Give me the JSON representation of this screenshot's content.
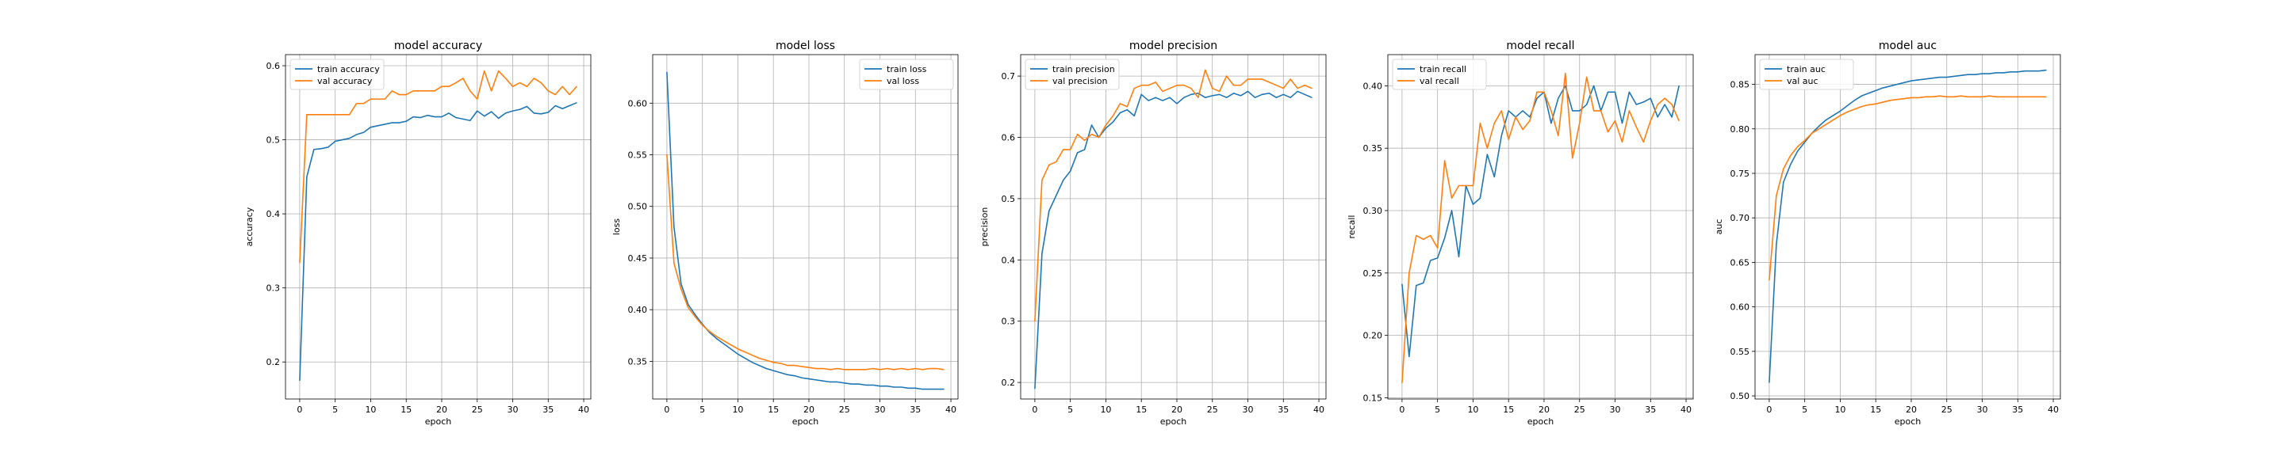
{
  "chart_data": [
    {
      "type": "line",
      "title": "model accuracy",
      "xlabel": "epoch",
      "ylabel": "accuracy",
      "xlim": [
        -2,
        41
      ],
      "ylim": [
        0.15,
        0.615
      ],
      "xticks": [
        0,
        5,
        10,
        15,
        20,
        25,
        30,
        35,
        40
      ],
      "yticks": [
        0.2,
        0.3,
        0.4,
        0.5,
        0.6
      ],
      "ytick_format": "1",
      "grid": true,
      "legend": "upper left",
      "x": [
        0,
        1,
        2,
        3,
        4,
        5,
        6,
        7,
        8,
        9,
        10,
        11,
        12,
        13,
        14,
        15,
        16,
        17,
        18,
        19,
        20,
        21,
        22,
        23,
        24,
        25,
        26,
        27,
        28,
        29,
        30,
        31,
        32,
        33,
        34,
        35,
        36,
        37,
        38,
        39
      ],
      "series": [
        {
          "name": "train accuracy",
          "color": "#1f77b4",
          "values": [
            0.175,
            0.45,
            0.487,
            0.488,
            0.49,
            0.498,
            0.5,
            0.502,
            0.507,
            0.51,
            0.517,
            0.519,
            0.521,
            0.523,
            0.523,
            0.525,
            0.531,
            0.53,
            0.533,
            0.531,
            0.531,
            0.536,
            0.53,
            0.528,
            0.526,
            0.539,
            0.532,
            0.538,
            0.529,
            0.536,
            0.539,
            0.541,
            0.545,
            0.536,
            0.535,
            0.537,
            0.546,
            0.542,
            0.546,
            0.55
          ]
        },
        {
          "name": "val accuracy",
          "color": "#ff7f0e",
          "values": [
            0.334,
            0.534,
            0.534,
            0.534,
            0.534,
            0.534,
            0.534,
            0.534,
            0.549,
            0.549,
            0.555,
            0.555,
            0.555,
            0.566,
            0.561,
            0.561,
            0.566,
            0.566,
            0.566,
            0.566,
            0.572,
            0.572,
            0.577,
            0.583,
            0.566,
            0.555,
            0.593,
            0.566,
            0.593,
            0.583,
            0.572,
            0.577,
            0.572,
            0.583,
            0.577,
            0.566,
            0.561,
            0.572,
            0.561,
            0.572
          ]
        }
      ]
    },
    {
      "type": "line",
      "title": "model loss",
      "xlabel": "epoch",
      "ylabel": "loss",
      "xlim": [
        -2,
        41
      ],
      "ylim": [
        0.3135,
        0.647
      ],
      "xticks": [
        0,
        5,
        10,
        15,
        20,
        25,
        30,
        35,
        40
      ],
      "yticks": [
        0.35,
        0.4,
        0.45,
        0.5,
        0.55,
        0.6
      ],
      "ytick_format": "2",
      "grid": true,
      "legend": "upper right",
      "x": [
        0,
        1,
        2,
        3,
        4,
        5,
        6,
        7,
        8,
        9,
        10,
        11,
        12,
        13,
        14,
        15,
        16,
        17,
        18,
        19,
        20,
        21,
        22,
        23,
        24,
        25,
        26,
        27,
        28,
        29,
        30,
        31,
        32,
        33,
        34,
        35,
        36,
        37,
        38,
        39
      ],
      "series": [
        {
          "name": "train loss",
          "color": "#1f77b4",
          "values": [
            0.63,
            0.48,
            0.425,
            0.405,
            0.395,
            0.386,
            0.378,
            0.372,
            0.367,
            0.362,
            0.357,
            0.353,
            0.349,
            0.346,
            0.343,
            0.341,
            0.339,
            0.337,
            0.336,
            0.334,
            0.333,
            0.332,
            0.331,
            0.33,
            0.33,
            0.329,
            0.328,
            0.328,
            0.327,
            0.327,
            0.326,
            0.326,
            0.325,
            0.325,
            0.324,
            0.324,
            0.323,
            0.323,
            0.323,
            0.323
          ]
        },
        {
          "name": "val loss",
          "color": "#ff7f0e",
          "values": [
            0.55,
            0.445,
            0.42,
            0.402,
            0.393,
            0.385,
            0.379,
            0.374,
            0.37,
            0.366,
            0.362,
            0.359,
            0.356,
            0.353,
            0.351,
            0.349,
            0.348,
            0.346,
            0.346,
            0.345,
            0.344,
            0.343,
            0.343,
            0.342,
            0.343,
            0.342,
            0.342,
            0.342,
            0.342,
            0.343,
            0.342,
            0.343,
            0.342,
            0.343,
            0.342,
            0.343,
            0.342,
            0.343,
            0.343,
            0.342
          ]
        }
      ]
    },
    {
      "type": "line",
      "title": "model precision",
      "xlabel": "epoch",
      "ylabel": "precision",
      "xlim": [
        -2,
        41
      ],
      "ylim": [
        0.173,
        0.735
      ],
      "xticks": [
        0,
        5,
        10,
        15,
        20,
        25,
        30,
        35,
        40
      ],
      "yticks": [
        0.2,
        0.3,
        0.4,
        0.5,
        0.6,
        0.7
      ],
      "ytick_format": "1",
      "grid": true,
      "legend": "upper left",
      "x": [
        0,
        1,
        2,
        3,
        4,
        5,
        6,
        7,
        8,
        9,
        10,
        11,
        12,
        13,
        14,
        15,
        16,
        17,
        18,
        19,
        20,
        21,
        22,
        23,
        24,
        25,
        26,
        27,
        28,
        29,
        30,
        31,
        32,
        33,
        34,
        35,
        36,
        37,
        38,
        39
      ],
      "series": [
        {
          "name": "train precision",
          "color": "#1f77b4",
          "values": [
            0.19,
            0.41,
            0.48,
            0.505,
            0.53,
            0.545,
            0.575,
            0.58,
            0.62,
            0.6,
            0.615,
            0.625,
            0.64,
            0.645,
            0.635,
            0.67,
            0.66,
            0.665,
            0.66,
            0.665,
            0.655,
            0.665,
            0.67,
            0.672,
            0.665,
            0.668,
            0.67,
            0.665,
            0.672,
            0.668,
            0.675,
            0.665,
            0.67,
            0.672,
            0.665,
            0.67,
            0.665,
            0.675,
            0.67,
            0.665
          ]
        },
        {
          "name": "val precision",
          "color": "#ff7f0e",
          "values": [
            0.3,
            0.53,
            0.555,
            0.56,
            0.58,
            0.58,
            0.605,
            0.595,
            0.605,
            0.6,
            0.62,
            0.635,
            0.655,
            0.65,
            0.68,
            0.685,
            0.685,
            0.69,
            0.675,
            0.68,
            0.685,
            0.685,
            0.68,
            0.665,
            0.71,
            0.68,
            0.675,
            0.7,
            0.685,
            0.685,
            0.695,
            0.695,
            0.695,
            0.69,
            0.685,
            0.68,
            0.695,
            0.68,
            0.685,
            0.68
          ]
        }
      ]
    },
    {
      "type": "line",
      "title": "model recall",
      "xlabel": "epoch",
      "ylabel": "recall",
      "xlim": [
        -2,
        41
      ],
      "ylim": [
        0.149,
        0.425
      ],
      "xticks": [
        0,
        5,
        10,
        15,
        20,
        25,
        30,
        35,
        40
      ],
      "yticks": [
        0.15,
        0.2,
        0.25,
        0.3,
        0.35,
        0.4
      ],
      "ytick_format": "2",
      "grid": true,
      "legend": "upper left",
      "x": [
        0,
        1,
        2,
        3,
        4,
        5,
        6,
        7,
        8,
        9,
        10,
        11,
        12,
        13,
        14,
        15,
        16,
        17,
        18,
        19,
        20,
        21,
        22,
        23,
        24,
        25,
        26,
        27,
        28,
        29,
        30,
        31,
        32,
        33,
        34,
        35,
        36,
        37,
        38,
        39
      ],
      "series": [
        {
          "name": "train recall",
          "color": "#1f77b4",
          "values": [
            0.241,
            0.183,
            0.24,
            0.242,
            0.26,
            0.262,
            0.278,
            0.3,
            0.263,
            0.32,
            0.305,
            0.31,
            0.345,
            0.327,
            0.36,
            0.38,
            0.375,
            0.38,
            0.375,
            0.39,
            0.395,
            0.37,
            0.39,
            0.4,
            0.38,
            0.38,
            0.385,
            0.4,
            0.38,
            0.395,
            0.395,
            0.37,
            0.395,
            0.385,
            0.387,
            0.39,
            0.375,
            0.385,
            0.375,
            0.4
          ]
        },
        {
          "name": "val recall",
          "color": "#ff7f0e",
          "values": [
            0.162,
            0.25,
            0.28,
            0.277,
            0.28,
            0.27,
            0.34,
            0.31,
            0.32,
            0.32,
            0.32,
            0.37,
            0.35,
            0.37,
            0.38,
            0.357,
            0.375,
            0.365,
            0.372,
            0.395,
            0.395,
            0.38,
            0.36,
            0.41,
            0.342,
            0.37,
            0.407,
            0.38,
            0.38,
            0.363,
            0.372,
            0.355,
            0.38,
            0.367,
            0.355,
            0.372,
            0.385,
            0.39,
            0.385,
            0.372
          ]
        }
      ]
    },
    {
      "type": "line",
      "title": "model auc",
      "xlabel": "epoch",
      "ylabel": "auc",
      "xlim": [
        -2,
        41
      ],
      "ylim": [
        0.4965,
        0.8834
      ],
      "xticks": [
        0,
        5,
        10,
        15,
        20,
        25,
        30,
        35,
        40
      ],
      "yticks": [
        0.5,
        0.55,
        0.6,
        0.65,
        0.7,
        0.75,
        0.8,
        0.85
      ],
      "ytick_format": "2",
      "grid": true,
      "legend": "upper left",
      "x": [
        0,
        1,
        2,
        3,
        4,
        5,
        6,
        7,
        8,
        9,
        10,
        11,
        12,
        13,
        14,
        15,
        16,
        17,
        18,
        19,
        20,
        21,
        22,
        23,
        24,
        25,
        26,
        27,
        28,
        29,
        30,
        31,
        32,
        33,
        34,
        35,
        36,
        37,
        38,
        39
      ],
      "series": [
        {
          "name": "train auc",
          "color": "#1f77b4",
          "values": [
            0.515,
            0.67,
            0.74,
            0.76,
            0.775,
            0.785,
            0.795,
            0.803,
            0.81,
            0.815,
            0.82,
            0.826,
            0.832,
            0.837,
            0.84,
            0.843,
            0.846,
            0.848,
            0.85,
            0.852,
            0.854,
            0.855,
            0.856,
            0.857,
            0.858,
            0.858,
            0.859,
            0.86,
            0.861,
            0.861,
            0.862,
            0.862,
            0.863,
            0.863,
            0.864,
            0.864,
            0.865,
            0.865,
            0.865,
            0.866
          ]
        },
        {
          "name": "val auc",
          "color": "#ff7f0e",
          "values": [
            0.63,
            0.725,
            0.755,
            0.77,
            0.78,
            0.787,
            0.795,
            0.8,
            0.805,
            0.81,
            0.815,
            0.819,
            0.822,
            0.825,
            0.827,
            0.828,
            0.83,
            0.832,
            0.833,
            0.834,
            0.835,
            0.835,
            0.836,
            0.836,
            0.837,
            0.836,
            0.836,
            0.837,
            0.836,
            0.836,
            0.836,
            0.837,
            0.836,
            0.836,
            0.836,
            0.836,
            0.836,
            0.836,
            0.836,
            0.836
          ]
        }
      ]
    }
  ]
}
